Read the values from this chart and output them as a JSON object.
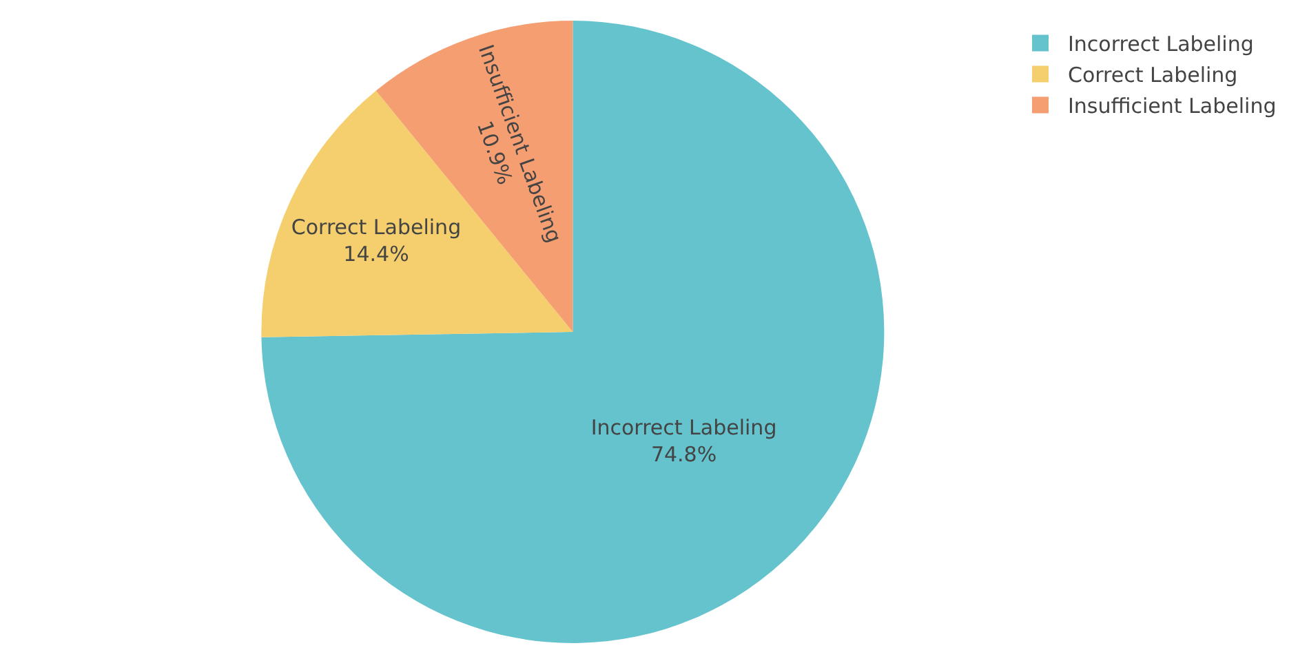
{
  "chart_data": {
    "type": "pie",
    "categories": [
      "Incorrect Labeling",
      "Correct Labeling",
      "Insufficient Labeling"
    ],
    "values": [
      74.8,
      14.4,
      10.9
    ],
    "value_labels": [
      "74.8%",
      "14.4%",
      "10.9%"
    ],
    "colors": [
      "#64c3cc",
      "#f5cf6e",
      "#f59e72"
    ],
    "legend": "top right"
  }
}
